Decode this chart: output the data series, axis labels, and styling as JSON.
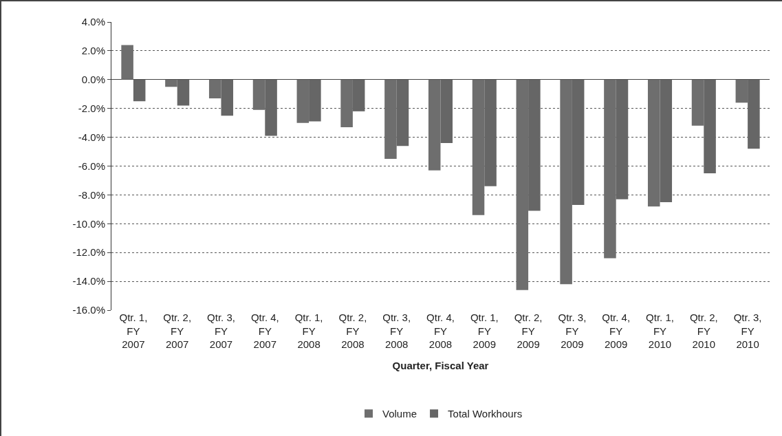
{
  "chart_data": {
    "type": "bar",
    "xlabel": "Quarter, Fiscal Year",
    "categories": [
      "Qtr. 1, FY 2007",
      "Qtr. 2, FY 2007",
      "Qtr. 3, FY 2007",
      "Qtr. 4, FY 2007",
      "Qtr. 1, FY 2008",
      "Qtr. 2, FY 2008",
      "Qtr. 3, FY 2008",
      "Qtr. 4, FY 2008",
      "Qtr. 1, FY 2009",
      "Qtr. 2, FY 2009",
      "Qtr. 3, FY 2009",
      "Qtr. 4, FY 2009",
      "Qtr. 1, FY 2010",
      "Qtr. 2, FY 2010",
      "Qtr. 3, FY 2010"
    ],
    "series": [
      {
        "name": "Volume",
        "color": "#6e6e6e",
        "values": [
          2.4,
          -0.5,
          -1.3,
          -2.1,
          -3.0,
          -3.3,
          -5.5,
          -6.3,
          -9.4,
          -14.6,
          -14.2,
          -12.4,
          -8.8,
          -3.2,
          -1.6
        ]
      },
      {
        "name": "Total Workhours",
        "color": "#666666",
        "values": [
          -1.5,
          -1.8,
          -2.5,
          -3.9,
          -2.9,
          -2.2,
          -4.6,
          -4.4,
          -7.4,
          -9.1,
          -8.7,
          -8.3,
          -8.5,
          -6.5,
          -4.8
        ]
      }
    ],
    "ylim": [
      -16,
      4
    ],
    "yticks": [
      {
        "value": 4,
        "label": "4.0%"
      },
      {
        "value": 2,
        "label": "2.0%"
      },
      {
        "value": 0,
        "label": "0.0%"
      },
      {
        "value": -2,
        "label": "-2.0%"
      },
      {
        "value": -4,
        "label": "-4.0%"
      },
      {
        "value": -6,
        "label": "-6.0%"
      },
      {
        "value": -8,
        "label": "-8.0%"
      },
      {
        "value": -10,
        "label": "-10.0%"
      },
      {
        "value": -12,
        "label": "-12.0%"
      },
      {
        "value": -14,
        "label": "-14.0%"
      },
      {
        "value": -16,
        "label": "-16.0%"
      }
    ],
    "grid": "y",
    "legend": "bottom"
  }
}
